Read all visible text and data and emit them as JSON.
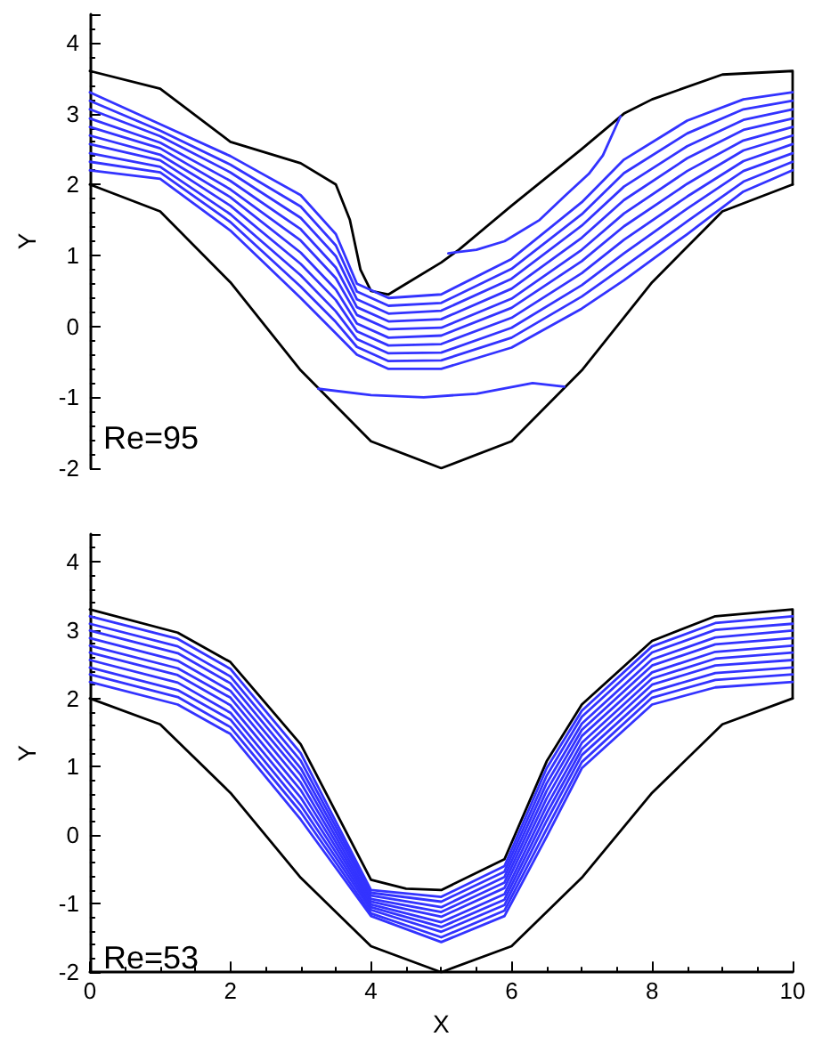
{
  "chart_data": [
    {
      "type": "line",
      "ylabel": "Y",
      "xlim": [
        0,
        10
      ],
      "ylim": [
        -2,
        4.4
      ],
      "yticks": [
        -2,
        -1,
        0,
        1,
        2,
        3,
        4
      ],
      "tick_labels": "y",
      "marker": "none",
      "line_style": "solid",
      "annotations": [
        "Re=95"
      ],
      "series": [
        {
          "color": "#000000",
          "x": [
            0,
            1,
            2,
            2.5,
            3,
            3.5,
            3.7,
            3.85,
            4,
            4.25,
            4.5,
            5,
            5.25,
            6,
            7,
            7.6,
            8,
            9,
            10,
            10
          ],
          "values": [
            3.6,
            3.35,
            2.6,
            2.45,
            2.3,
            2.0,
            1.5,
            0.8,
            0.5,
            0.45,
            0.6,
            0.9,
            1.08,
            1.7,
            2.5,
            3.0,
            3.2,
            3.55,
            3.6,
            2.0
          ]
        },
        {
          "color": "#000000",
          "x": [
            0,
            1,
            2,
            3,
            4,
            5,
            6,
            7,
            8,
            9,
            10
          ],
          "values": [
            2,
            1.62,
            0.62,
            -0.62,
            -1.62,
            -2,
            -1.62,
            -0.62,
            0.62,
            1.62,
            2
          ]
        },
        {
          "color": "#3333ff",
          "x": [
            0,
            1,
            2,
            3,
            3.5,
            3.8,
            4.25,
            5,
            6,
            7,
            7.6,
            8.5,
            9.3,
            10
          ],
          "values": [
            3.3,
            2.85,
            2.4,
            1.85,
            1.3,
            0.6,
            0.4,
            0.45,
            0.95,
            1.75,
            2.35,
            2.9,
            3.2,
            3.3
          ]
        },
        {
          "color": "#3333ff",
          "x": [
            0,
            1,
            2,
            3,
            3.5,
            3.8,
            4.25,
            5,
            6,
            7,
            7.6,
            8.5,
            9.3,
            10
          ],
          "values": [
            3.18,
            2.76,
            2.28,
            1.69,
            1.14,
            0.49,
            0.29,
            0.33,
            0.81,
            1.58,
            2.16,
            2.72,
            3.06,
            3.18
          ]
        },
        {
          "color": "#3333ff",
          "x": [
            0,
            1,
            2,
            3,
            3.5,
            3.8,
            4.25,
            5,
            6,
            7,
            7.6,
            8.5,
            9.3,
            10
          ],
          "values": [
            3.06,
            2.68,
            2.17,
            1.53,
            0.99,
            0.38,
            0.18,
            0.22,
            0.67,
            1.42,
            1.97,
            2.54,
            2.91,
            3.06
          ]
        },
        {
          "color": "#3333ff",
          "x": [
            0,
            1,
            2,
            3,
            3.5,
            3.8,
            4.25,
            5,
            6,
            7,
            7.6,
            8.5,
            9.3,
            10
          ],
          "values": [
            2.93,
            2.59,
            2.05,
            1.37,
            0.83,
            0.27,
            0.07,
            0.1,
            0.53,
            1.25,
            1.78,
            2.37,
            2.77,
            2.93
          ]
        },
        {
          "color": "#3333ff",
          "x": [
            0,
            1,
            2,
            3,
            3.5,
            3.8,
            4.25,
            5,
            6,
            7,
            7.6,
            8.5,
            9.3,
            10
          ],
          "values": [
            2.81,
            2.51,
            1.93,
            1.21,
            0.68,
            0.16,
            -0.04,
            -0.02,
            0.39,
            1.08,
            1.59,
            2.19,
            2.62,
            2.81
          ]
        },
        {
          "color": "#3333ff",
          "x": [
            0,
            1,
            2,
            3,
            3.5,
            3.8,
            4.25,
            5,
            6,
            7,
            7.6,
            8.5,
            9.3,
            10
          ],
          "values": [
            2.69,
            2.42,
            1.82,
            1.04,
            0.52,
            0.04,
            -0.16,
            -0.13,
            0.26,
            0.92,
            1.41,
            2.01,
            2.48,
            2.69
          ]
        },
        {
          "color": "#3333ff",
          "x": [
            0,
            1,
            2,
            3,
            3.5,
            3.8,
            4.25,
            5,
            6,
            7,
            7.6,
            8.5,
            9.3,
            10
          ],
          "values": [
            2.57,
            2.34,
            1.7,
            0.88,
            0.37,
            -0.07,
            -0.27,
            -0.25,
            0.12,
            0.75,
            1.22,
            1.83,
            2.33,
            2.57
          ]
        },
        {
          "color": "#3333ff",
          "x": [
            0,
            1,
            2,
            3,
            3.5,
            3.8,
            4.25,
            5,
            6,
            7,
            7.6,
            8.5,
            9.3,
            10
          ],
          "values": [
            2.44,
            2.25,
            1.58,
            0.72,
            0.21,
            -0.18,
            -0.38,
            -0.37,
            -0.02,
            0.58,
            1.03,
            1.66,
            2.19,
            2.44
          ]
        },
        {
          "color": "#3333ff",
          "x": [
            0,
            1,
            2,
            3,
            3.5,
            3.8,
            4.25,
            5,
            6,
            7,
            7.6,
            8.5,
            9.3,
            10
          ],
          "values": [
            2.32,
            2.17,
            1.47,
            0.56,
            0.06,
            -0.29,
            -0.49,
            -0.48,
            -0.16,
            0.42,
            0.84,
            1.48,
            2.04,
            2.32
          ]
        },
        {
          "color": "#3333ff",
          "x": [
            0,
            1,
            2,
            3,
            3.5,
            3.8,
            4.25,
            5,
            6,
            7,
            7.6,
            8.5,
            9.3,
            10
          ],
          "values": [
            2.2,
            2.08,
            1.35,
            0.4,
            -0.1,
            -0.4,
            -0.6,
            -0.6,
            -0.3,
            0.25,
            0.65,
            1.3,
            1.9,
            2.2
          ]
        },
        {
          "color": "#3333ff",
          "x": [
            5.1,
            5.5,
            5.9,
            6.4,
            6.75,
            7.1,
            7.3,
            7.55
          ],
          "values": [
            1.03,
            1.08,
            1.2,
            1.5,
            1.83,
            2.15,
            2.41,
            2.96
          ]
        },
        {
          "color": "#3333ff",
          "x": [
            3.25,
            4,
            4.75,
            5.5,
            6.3,
            6.75
          ],
          "values": [
            -0.88,
            -0.97,
            -1.0,
            -0.95,
            -0.8,
            -0.85
          ]
        }
      ]
    },
    {
      "type": "line",
      "xlabel": "X",
      "ylabel": "Y",
      "xlim": [
        0,
        10
      ],
      "ylim": [
        -2,
        4.4
      ],
      "xticks": [
        0,
        2,
        4,
        6,
        8,
        10
      ],
      "yticks": [
        -2,
        -1,
        0,
        1,
        2,
        3,
        4
      ],
      "marker": "none",
      "line_style": "solid",
      "annotations": [
        "Re=53"
      ],
      "series": [
        {
          "color": "#000000",
          "x": [
            0,
            1.25,
            2,
            3,
            4,
            4.5,
            5,
            5.9,
            6.5,
            7,
            8,
            8.9,
            10,
            10
          ],
          "values": [
            3.3,
            2.96,
            2.53,
            1.33,
            -0.65,
            -0.78,
            -0.8,
            -0.35,
            1.08,
            1.91,
            2.84,
            3.2,
            3.3,
            2.0
          ]
        },
        {
          "color": "#000000",
          "x": [
            0,
            1,
            2,
            3,
            4,
            5,
            6,
            7,
            8,
            9,
            10
          ],
          "values": [
            2,
            1.62,
            0.62,
            -0.62,
            -1.62,
            -2,
            -1.62,
            -0.62,
            0.62,
            1.62,
            2
          ]
        },
        {
          "color": "#3333ff",
          "x": [
            0,
            1.25,
            2,
            3,
            4,
            5,
            5.9,
            6.5,
            7,
            8,
            8.9,
            10
          ],
          "values": [
            3.2,
            2.87,
            2.43,
            1.2,
            -0.8,
            -0.9,
            -0.45,
            0.98,
            1.82,
            2.76,
            3.1,
            3.2
          ]
        },
        {
          "color": "#3333ff",
          "x": [
            0,
            1.25,
            2,
            3,
            4,
            5,
            5.9,
            6.5,
            7,
            8,
            8.9,
            10
          ],
          "values": [
            3.09,
            2.76,
            2.32,
            1.09,
            -0.84,
            -0.97,
            -0.53,
            0.87,
            1.73,
            2.67,
            3.0,
            3.09
          ]
        },
        {
          "color": "#3333ff",
          "x": [
            0,
            1.25,
            2,
            3,
            4,
            5,
            5.9,
            6.5,
            7,
            8,
            8.9,
            10
          ],
          "values": [
            2.99,
            2.66,
            2.22,
            0.98,
            -0.88,
            -1.05,
            -0.61,
            0.76,
            1.63,
            2.57,
            2.89,
            2.99
          ]
        },
        {
          "color": "#3333ff",
          "x": [
            0,
            1.25,
            2,
            3,
            4,
            5,
            5.9,
            6.5,
            7,
            8,
            8.9,
            10
          ],
          "values": [
            2.88,
            2.55,
            2.11,
            0.88,
            -0.93,
            -1.12,
            -0.69,
            0.65,
            1.54,
            2.48,
            2.79,
            2.88
          ]
        },
        {
          "color": "#3333ff",
          "x": [
            0,
            1.25,
            2,
            3,
            4,
            5,
            5.9,
            6.5,
            7,
            8,
            8.9,
            10
          ],
          "values": [
            2.77,
            2.44,
            2.01,
            0.77,
            -0.97,
            -1.19,
            -0.77,
            0.54,
            1.45,
            2.38,
            2.68,
            2.77
          ]
        },
        {
          "color": "#3333ff",
          "x": [
            0,
            1.25,
            2,
            3,
            4,
            5,
            5.9,
            6.5,
            7,
            8,
            8.9,
            10
          ],
          "values": [
            2.67,
            2.34,
            1.9,
            0.66,
            -1.01,
            -1.27,
            -0.86,
            0.43,
            1.35,
            2.29,
            2.58,
            2.67
          ]
        },
        {
          "color": "#3333ff",
          "x": [
            0,
            1.25,
            2,
            3,
            4,
            5,
            5.9,
            6.5,
            7,
            8,
            8.9,
            10
          ],
          "values": [
            2.56,
            2.23,
            1.79,
            0.55,
            -1.05,
            -1.34,
            -0.94,
            0.32,
            1.26,
            2.2,
            2.48,
            2.56
          ]
        },
        {
          "color": "#3333ff",
          "x": [
            0,
            1.25,
            2,
            3,
            4,
            5,
            5.9,
            6.5,
            7,
            8,
            8.9,
            10
          ],
          "values": [
            2.45,
            2.12,
            1.69,
            0.44,
            -1.09,
            -1.41,
            -1.02,
            0.21,
            1.17,
            2.1,
            2.37,
            2.45
          ]
        },
        {
          "color": "#3333ff",
          "x": [
            0,
            1.25,
            2,
            3,
            4,
            5,
            5.9,
            6.5,
            7,
            8,
            8.9,
            10
          ],
          "values": [
            2.35,
            2.02,
            1.58,
            0.34,
            -1.14,
            -1.49,
            -1.1,
            0.09,
            1.07,
            2.01,
            2.27,
            2.35
          ]
        },
        {
          "color": "#3333ff",
          "x": [
            0,
            1.25,
            2,
            3,
            4,
            5,
            5.9,
            6.5,
            7,
            8,
            8.9,
            10
          ],
          "values": [
            2.24,
            1.91,
            1.48,
            0.23,
            -1.18,
            -1.56,
            -1.18,
            -0.02,
            0.98,
            1.91,
            2.16,
            2.24
          ]
        }
      ]
    }
  ]
}
